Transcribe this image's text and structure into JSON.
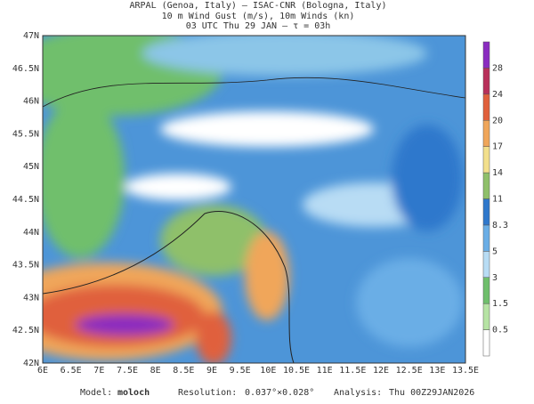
{
  "header": {
    "lines": [
      "ARPAL (Genoa, Italy)  —  ISAC-CNR (Bologna, Italy)",
      "10 m Wind Gust (m/s), 10m Winds (kn)",
      "03 UTC Thu 29 JAN  —  τ = 03h"
    ]
  },
  "axes": {
    "x_labels": [
      "6E",
      "6.5E",
      "7E",
      "7.5E",
      "8E",
      "8.5E",
      "9E",
      "9.5E",
      "10E",
      "10.5E",
      "11E",
      "11.5E",
      "12E",
      "12.5E",
      "13E",
      "13.5E"
    ],
    "y_labels": [
      "42N",
      "42.5N",
      "43N",
      "43.5N",
      "44N",
      "44.5N",
      "45N",
      "45.5N",
      "46N",
      "46.5N",
      "47N"
    ]
  },
  "colorbar": {
    "labels": [
      "0.5",
      "1.5",
      "3",
      "5",
      "8.3",
      "11",
      "14",
      "17",
      "20",
      "24",
      "28"
    ],
    "colors": [
      "#ffffff",
      "#b6e3a4",
      "#6fbf6c",
      "#b8dcf4",
      "#6aaee6",
      "#2f78cc",
      "#8fc06a",
      "#f2df8c",
      "#f0a65a",
      "#e0603c",
      "#b8305a",
      "#8a2cc0"
    ]
  },
  "footer": {
    "model_label": "Model:",
    "model": "moloch",
    "resolution_label": "Resolution:",
    "resolution": "0.037°×0.028°",
    "analysis_label": "Analysis:",
    "analysis": "Thu 00Z29JAN2026"
  }
}
